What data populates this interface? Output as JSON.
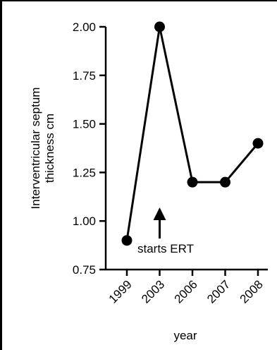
{
  "chart_data": {
    "type": "line",
    "categories": [
      "1999",
      "2003",
      "2006",
      "2007",
      "2008"
    ],
    "values": [
      0.9,
      2.0,
      1.2,
      1.2,
      1.4
    ],
    "ylabel_lines": [
      "Interventricular septum",
      "thickness cm"
    ],
    "xlabel": "year",
    "ylim": [
      0.75,
      2.0
    ],
    "yticks": [
      "0.75",
      "1.00",
      "1.25",
      "1.50",
      "1.75",
      "2.00"
    ],
    "grid": false,
    "legend": "none",
    "annotation": {
      "text": "starts ERT",
      "category": "2003"
    },
    "colors": {
      "line": "#000000",
      "marker": "#000000"
    }
  }
}
